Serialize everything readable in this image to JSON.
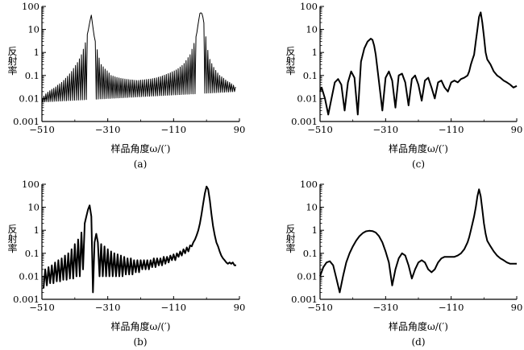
{
  "chart_data": [
    {
      "panel_label": "(a)",
      "type": "line",
      "title": "",
      "xlabel": "样品角度ω/(′)",
      "ylabel": "反射率",
      "yscale": "log",
      "xlim": [
        -510,
        90
      ],
      "ylim": [
        0.001,
        100
      ],
      "x_ticks": [
        "−510",
        "−310",
        "−110",
        "90"
      ],
      "y_ticks": [
        "0.001",
        "0.01",
        "0.1",
        "1",
        "10",
        "100"
      ],
      "grid": false,
      "series": [
        {
          "x": [
            -510,
            -500,
            -490,
            -480,
            -470,
            -460,
            -450,
            -440,
            -430,
            -420,
            -410,
            -400,
            -390,
            -380,
            -370,
            -365,
            -360,
            -355,
            -350,
            -345,
            -340,
            -335,
            -330,
            -325,
            -320,
            -310,
            -300,
            -280,
            -260,
            -240,
            -220,
            -200,
            -180,
            -160,
            -140,
            -120,
            -100,
            -80,
            -60,
            -50,
            -40,
            -35,
            -30,
            -25,
            -20,
            -15,
            -10,
            -5,
            0,
            10,
            20,
            30,
            40,
            50,
            60,
            70,
            80,
            90
          ],
          "y": [
            0.01,
            0.015,
            0.02,
            0.025,
            0.03,
            0.04,
            0.05,
            0.07,
            0.1,
            0.15,
            0.25,
            0.4,
            0.8,
            2.0,
            8.0,
            20.0,
            42.0,
            12.0,
            4.0,
            2.0,
            1.0,
            0.5,
            0.3,
            0.25,
            0.2,
            0.15,
            0.1,
            0.08,
            0.07,
            0.065,
            0.06,
            0.065,
            0.07,
            0.08,
            0.1,
            0.13,
            0.18,
            0.3,
            0.8,
            2.0,
            6.0,
            20.0,
            50.0,
            55.0,
            30.0,
            10.0,
            3.0,
            1.0,
            0.5,
            0.25,
            0.15,
            0.1,
            0.08,
            0.06,
            0.05,
            0.04,
            0.03,
            0.025
          ],
          "oscillation": {
            "lower_envelope": [
              0.007,
              0.02
            ],
            "period": 6,
            "x_range": [
              -510,
              80
            ]
          }
        }
      ]
    },
    {
      "panel_label": "(c)",
      "type": "line",
      "title": "",
      "xlabel": "样品角度ω/(′)",
      "ylabel": "反射率",
      "yscale": "log",
      "xlim": [
        -510,
        90
      ],
      "ylim": [
        0.001,
        100
      ],
      "x_ticks": [
        "−510",
        "−310",
        "−110",
        "90"
      ],
      "y_ticks": [
        "0.001",
        "0.01",
        "0.1",
        "1",
        "10",
        "100"
      ],
      "grid": false,
      "series": [
        {
          "x": [
            -510,
            -505,
            -495,
            -485,
            -475,
            -465,
            -455,
            -445,
            -435,
            -425,
            -415,
            -405,
            -395,
            -385,
            -375,
            -365,
            -355,
            -350,
            -345,
            -340,
            -330,
            -320,
            -310,
            -300,
            -290,
            -280,
            -270,
            -260,
            -250,
            -240,
            -230,
            -220,
            -210,
            -200,
            -190,
            -180,
            -170,
            -160,
            -150,
            -140,
            -130,
            -120,
            -110,
            -100,
            -90,
            -80,
            -70,
            -60,
            -55,
            -50,
            -45,
            -40,
            -35,
            -30,
            -25,
            -20,
            -15,
            -10,
            -5,
            0,
            10,
            20,
            30,
            40,
            50,
            60,
            70,
            80,
            90
          ],
          "y": [
            0.02,
            0.03,
            0.01,
            0.002,
            0.01,
            0.05,
            0.07,
            0.04,
            0.003,
            0.05,
            0.15,
            0.08,
            0.002,
            0.4,
            1.5,
            3.0,
            4.0,
            3.5,
            2.0,
            0.8,
            0.05,
            0.003,
            0.08,
            0.15,
            0.06,
            0.004,
            0.1,
            0.12,
            0.05,
            0.005,
            0.07,
            0.1,
            0.04,
            0.008,
            0.06,
            0.08,
            0.03,
            0.01,
            0.05,
            0.06,
            0.03,
            0.02,
            0.05,
            0.06,
            0.05,
            0.07,
            0.08,
            0.1,
            0.15,
            0.3,
            0.5,
            0.8,
            3.0,
            10.0,
            35.0,
            55.0,
            20.0,
            5.0,
            1.0,
            0.5,
            0.3,
            0.15,
            0.1,
            0.08,
            0.06,
            0.05,
            0.04,
            0.03,
            0.035
          ]
        }
      ]
    },
    {
      "panel_label": "(b)",
      "type": "line",
      "title": "",
      "xlabel": "样品角度ω/(′)",
      "ylabel": "反射率",
      "yscale": "log",
      "xlim": [
        -510,
        90
      ],
      "ylim": [
        0.001,
        100
      ],
      "x_ticks": [
        "−510",
        "−310",
        "−110",
        "90"
      ],
      "y_ticks": [
        "0.001",
        "0.01",
        "0.1",
        "1",
        "10",
        "100"
      ],
      "grid": false,
      "series": [
        {
          "x": [
            -505,
            -500,
            -495,
            -490,
            -485,
            -480,
            -475,
            -470,
            -465,
            -460,
            -455,
            -450,
            -445,
            -440,
            -435,
            -430,
            -425,
            -420,
            -415,
            -410,
            -405,
            -400,
            -395,
            -390,
            -385,
            -380,
            -375,
            -370,
            -365,
            -360,
            -355,
            -350,
            -345,
            -340,
            -335,
            -330,
            -325,
            -320,
            -315,
            -310,
            -305,
            -300,
            -295,
            -290,
            -285,
            -280,
            -275,
            -270,
            -265,
            -260,
            -255,
            -250,
            -245,
            -240,
            -235,
            -230,
            -225,
            -220,
            -215,
            -210,
            -205,
            -200,
            -195,
            -190,
            -185,
            -180,
            -175,
            -170,
            -165,
            -160,
            -155,
            -150,
            -145,
            -140,
            -135,
            -130,
            -125,
            -120,
            -115,
            -110,
            -105,
            -100,
            -95,
            -90,
            -85,
            -80,
            -75,
            -70,
            -65,
            -60,
            -55,
            -50,
            -45,
            -40,
            -35,
            -30,
            -25,
            -20,
            -15,
            -10,
            -5,
            0,
            5,
            10,
            15,
            20,
            25,
            30,
            35,
            40,
            45,
            50,
            55,
            60,
            65,
            70,
            75,
            80
          ],
          "y": [
            0.003,
            0.02,
            0.004,
            0.025,
            0.005,
            0.03,
            0.005,
            0.04,
            0.006,
            0.05,
            0.006,
            0.06,
            0.007,
            0.08,
            0.007,
            0.1,
            0.008,
            0.15,
            0.008,
            0.25,
            0.01,
            0.4,
            0.01,
            0.8,
            0.02,
            2.0,
            4.0,
            8.0,
            12.0,
            4.0,
            0.002,
            0.3,
            0.7,
            0.3,
            0.01,
            0.25,
            0.01,
            0.2,
            0.01,
            0.15,
            0.01,
            0.12,
            0.01,
            0.1,
            0.01,
            0.09,
            0.01,
            0.08,
            0.01,
            0.07,
            0.012,
            0.06,
            0.012,
            0.06,
            0.012,
            0.05,
            0.015,
            0.05,
            0.015,
            0.05,
            0.02,
            0.05,
            0.02,
            0.05,
            0.02,
            0.05,
            0.025,
            0.06,
            0.025,
            0.06,
            0.03,
            0.06,
            0.03,
            0.07,
            0.035,
            0.07,
            0.04,
            0.08,
            0.05,
            0.09,
            0.05,
            0.1,
            0.07,
            0.12,
            0.08,
            0.15,
            0.1,
            0.18,
            0.12,
            0.22,
            0.2,
            0.3,
            0.4,
            0.6,
            1.0,
            2.0,
            5.0,
            15.0,
            40.0,
            80.0,
            60.0,
            20.0,
            5.0,
            1.5,
            0.6,
            0.3,
            0.2,
            0.12,
            0.08,
            0.06,
            0.05,
            0.04,
            0.035,
            0.04,
            0.035,
            0.04,
            0.03,
            0.03
          ]
        }
      ]
    },
    {
      "panel_label": "(d)",
      "type": "line",
      "title": "",
      "xlabel": "样品角度ω/(′)",
      "ylabel": "反射率",
      "yscale": "log",
      "xlim": [
        -510,
        90
      ],
      "ylim": [
        0.001,
        100
      ],
      "x_ticks": [
        "−510",
        "−310",
        "−110",
        "90"
      ],
      "y_ticks": [
        "0.001",
        "0.01",
        "0.1",
        "1",
        "10",
        "100"
      ],
      "grid": false,
      "series": [
        {
          "x": [
            -510,
            -500,
            -490,
            -480,
            -470,
            -460,
            -450,
            -440,
            -430,
            -420,
            -410,
            -400,
            -390,
            -380,
            -370,
            -360,
            -350,
            -340,
            -330,
            -320,
            -310,
            -300,
            -290,
            -280,
            -270,
            -260,
            -250,
            -240,
            -230,
            -220,
            -210,
            -200,
            -190,
            -180,
            -170,
            -160,
            -150,
            -140,
            -130,
            -120,
            -110,
            -100,
            -90,
            -80,
            -70,
            -60,
            -55,
            -50,
            -45,
            -40,
            -35,
            -30,
            -25,
            -20,
            -15,
            -10,
            -5,
            0,
            10,
            20,
            30,
            40,
            50,
            60,
            70,
            80,
            90
          ],
          "y": [
            0.01,
            0.025,
            0.04,
            0.045,
            0.03,
            0.008,
            0.002,
            0.01,
            0.04,
            0.1,
            0.2,
            0.35,
            0.55,
            0.75,
            0.9,
            0.95,
            0.92,
            0.8,
            0.55,
            0.3,
            0.12,
            0.04,
            0.004,
            0.02,
            0.06,
            0.1,
            0.08,
            0.03,
            0.008,
            0.02,
            0.04,
            0.05,
            0.04,
            0.02,
            0.015,
            0.02,
            0.04,
            0.06,
            0.07,
            0.07,
            0.07,
            0.07,
            0.08,
            0.1,
            0.15,
            0.3,
            0.5,
            1.0,
            2.0,
            4.0,
            10.0,
            30.0,
            60.0,
            30.0,
            8.0,
            2.0,
            0.7,
            0.35,
            0.2,
            0.12,
            0.08,
            0.06,
            0.05,
            0.04,
            0.035,
            0.035,
            0.035
          ]
        }
      ]
    }
  ]
}
